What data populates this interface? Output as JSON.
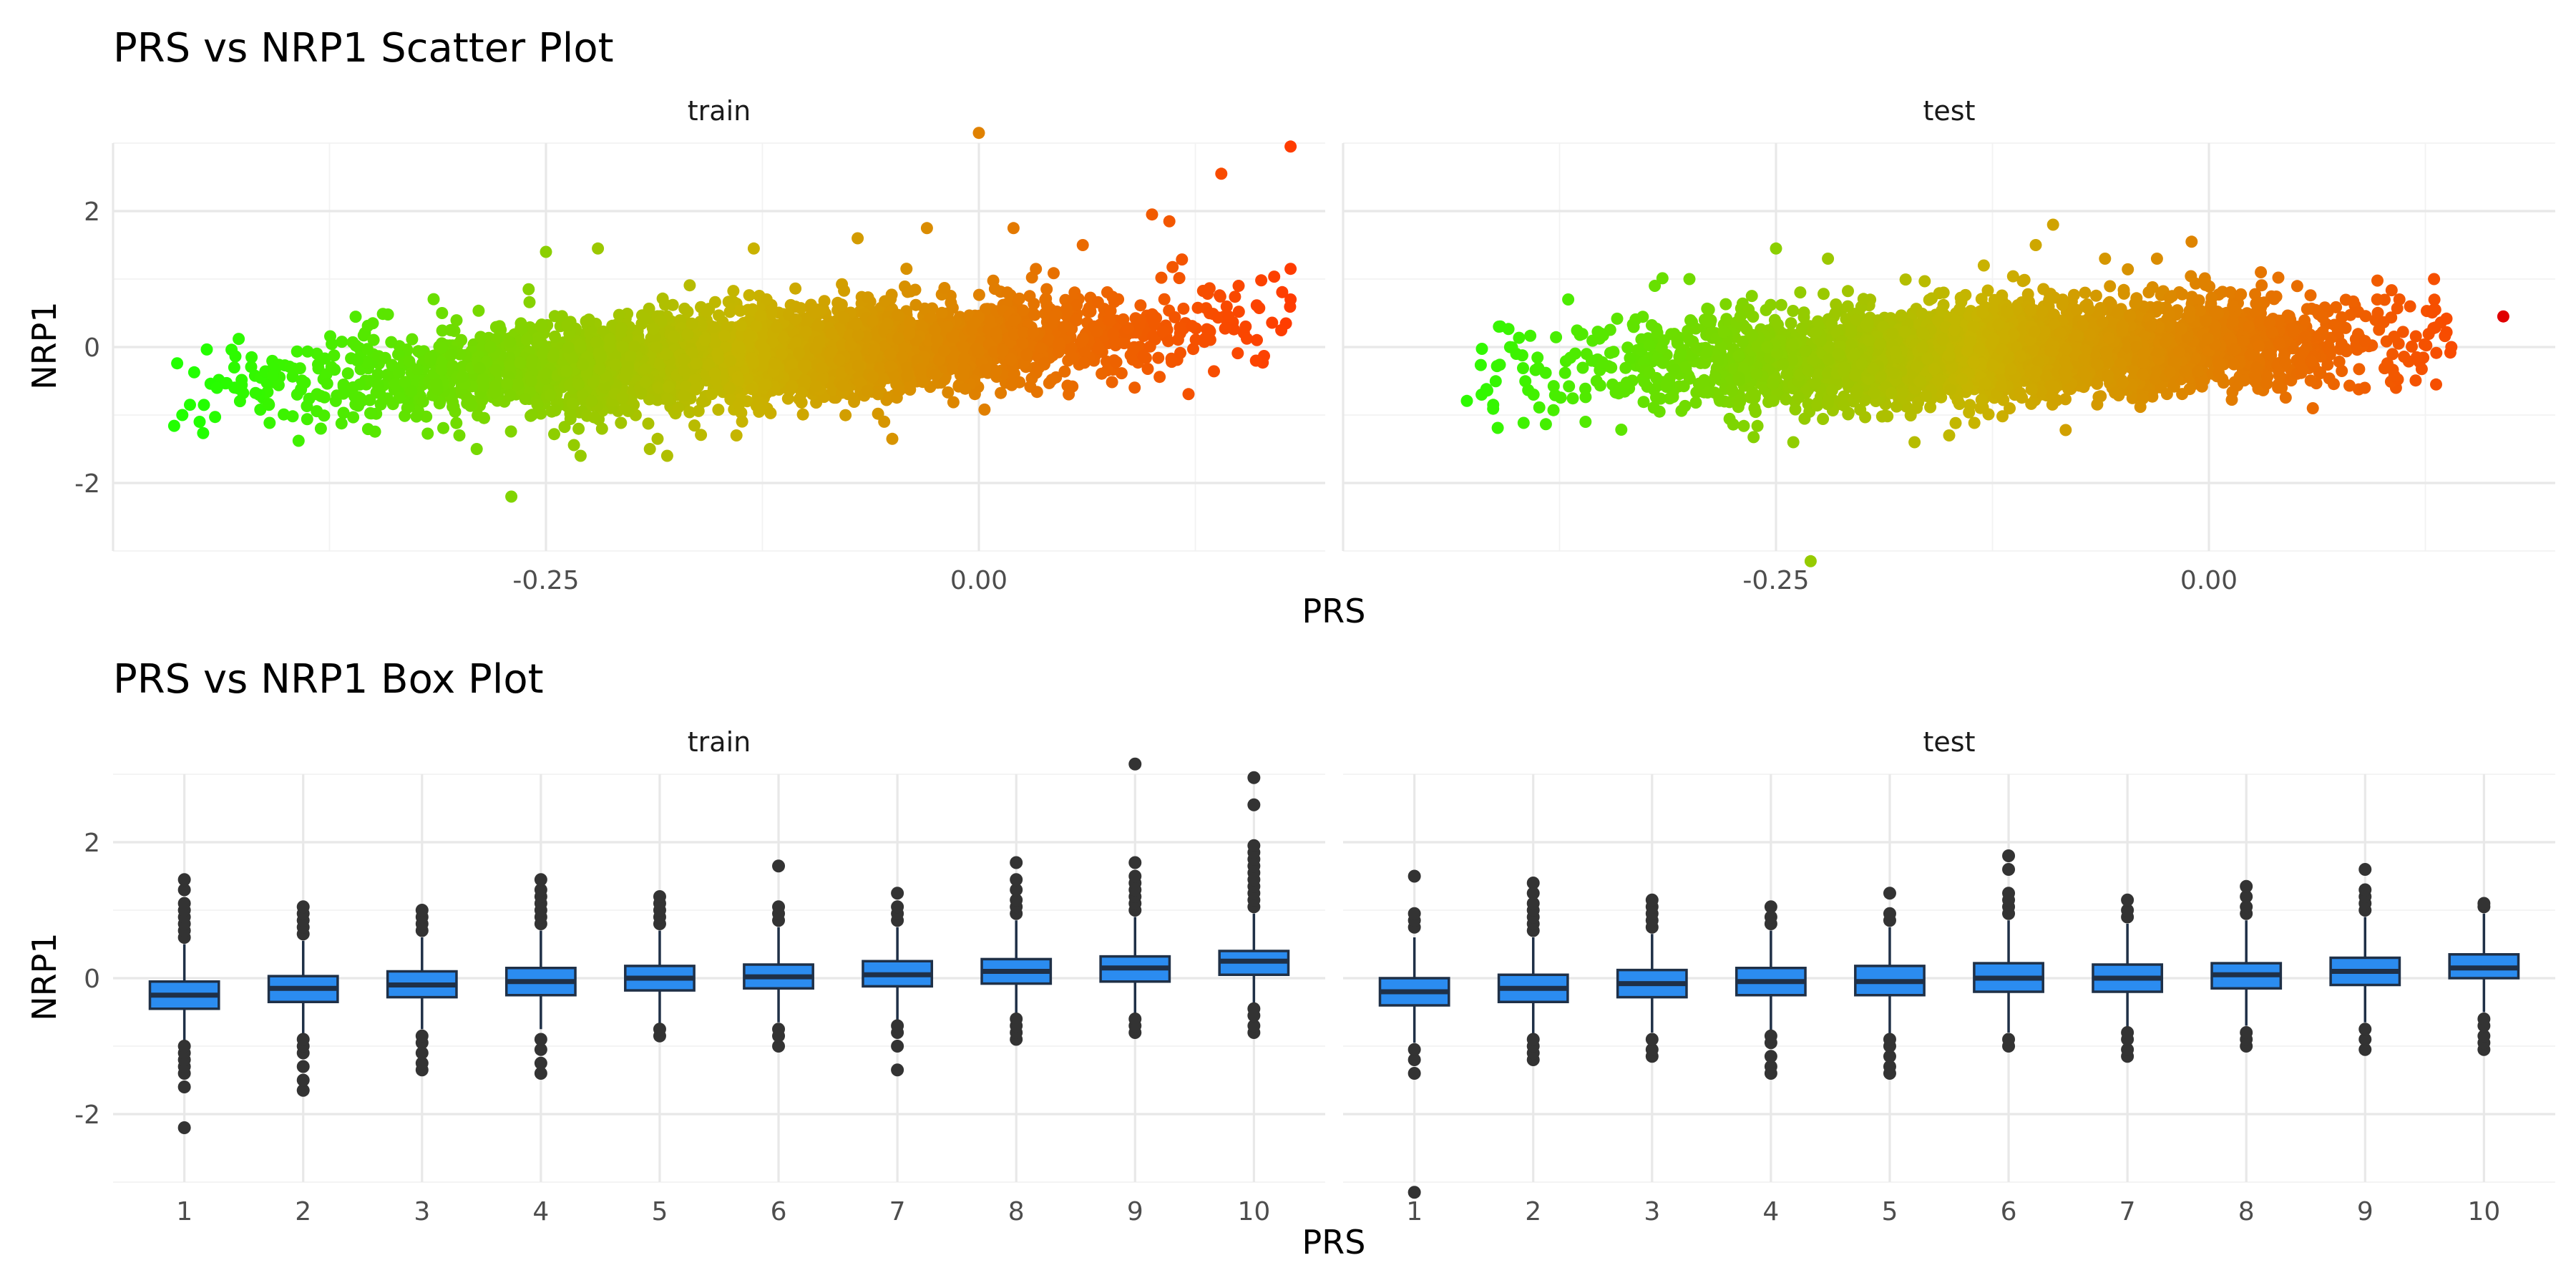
{
  "chart_data": [
    {
      "type": "scatter",
      "title": "PRS vs NRP1 Scatter Plot",
      "xlabel": "PRS",
      "ylabel": "NRP1",
      "facets": [
        "train",
        "test"
      ],
      "xlim": [
        -0.5,
        0.2
      ],
      "ylim": [
        -3.0,
        3.0
      ],
      "x_ticks": [
        -0.25,
        0.0
      ],
      "x_tick_labels": [
        "-0.25",
        "0.00"
      ],
      "y_ticks": [
        -2,
        0,
        2
      ],
      "y_tick_labels": [
        "-2",
        "0",
        "2"
      ],
      "color_scale": {
        "low": "#22ff00",
        "mid": "#c8b400",
        "high": "#ff3c00",
        "range": [
          -0.45,
          0.18
        ]
      },
      "grid": true,
      "legend": "none",
      "panels": [
        {
          "name": "train",
          "cloud": {
            "x_range": [
              -0.47,
              0.18
            ],
            "slope": 2.6,
            "mean_at_zero": 0.05,
            "sd": 0.35
          },
          "points": [
            {
              "x": -0.46,
              "y": -1.0
            },
            {
              "x": -0.45,
              "y": -1.1
            },
            {
              "x": -0.44,
              "y": -0.6
            },
            {
              "x": -0.43,
              "y": -0.3
            },
            {
              "x": -0.42,
              "y": -0.15
            },
            {
              "x": -0.41,
              "y": -0.85
            },
            {
              "x": -0.38,
              "y": -1.2
            },
            {
              "x": -0.35,
              "y": 0.35
            },
            {
              "x": -0.31,
              "y": 0.5
            },
            {
              "x": -0.3,
              "y": -1.3
            },
            {
              "x": -0.29,
              "y": -1.5
            },
            {
              "x": -0.27,
              "y": -2.2
            },
            {
              "x": -0.26,
              "y": 0.85
            },
            {
              "x": -0.25,
              "y": 1.4
            },
            {
              "x": -0.23,
              "y": -1.6
            },
            {
              "x": -0.22,
              "y": 1.45
            },
            {
              "x": -0.19,
              "y": -1.5
            },
            {
              "x": -0.18,
              "y": -1.6
            },
            {
              "x": -0.14,
              "y": -1.3
            },
            {
              "x": -0.13,
              "y": 1.45
            },
            {
              "x": -0.07,
              "y": 1.6
            },
            {
              "x": -0.05,
              "y": -1.35
            },
            {
              "x": -0.03,
              "y": 1.75
            },
            {
              "x": 0.0,
              "y": 3.15
            },
            {
              "x": 0.02,
              "y": 1.75
            },
            {
              "x": 0.06,
              "y": 1.5
            },
            {
              "x": 0.1,
              "y": 1.95
            },
            {
              "x": 0.11,
              "y": 1.85
            },
            {
              "x": 0.14,
              "y": 2.55
            },
            {
              "x": 0.15,
              "y": 0.9
            },
            {
              "x": 0.16,
              "y": -0.2
            },
            {
              "x": 0.18,
              "y": 1.15
            },
            {
              "x": 0.18,
              "y": 0.7
            },
            {
              "x": 0.18,
              "y": 2.95
            }
          ]
        },
        {
          "name": "test",
          "cloud": {
            "x_range": [
              -0.43,
              0.14
            ],
            "slope": 1.8,
            "mean_at_zero": 0.05,
            "sd": 0.35
          },
          "points": [
            {
              "x": -0.42,
              "y": -0.7
            },
            {
              "x": -0.41,
              "y": 0.3
            },
            {
              "x": -0.4,
              "y": -0.1
            },
            {
              "x": -0.39,
              "y": -0.7
            },
            {
              "x": -0.37,
              "y": 0.7
            },
            {
              "x": -0.36,
              "y": -1.1
            },
            {
              "x": -0.32,
              "y": 0.9
            },
            {
              "x": -0.3,
              "y": 1.0
            },
            {
              "x": -0.25,
              "y": 1.45
            },
            {
              "x": -0.24,
              "y": -1.4
            },
            {
              "x": -0.23,
              "y": -3.15
            },
            {
              "x": -0.22,
              "y": 1.3
            },
            {
              "x": -0.17,
              "y": -1.4
            },
            {
              "x": -0.15,
              "y": -1.3
            },
            {
              "x": -0.13,
              "y": 1.2
            },
            {
              "x": -0.1,
              "y": 1.5
            },
            {
              "x": -0.09,
              "y": 1.8
            },
            {
              "x": -0.06,
              "y": 1.3
            },
            {
              "x": -0.03,
              "y": 1.3
            },
            {
              "x": -0.01,
              "y": 1.55
            },
            {
              "x": 0.03,
              "y": 1.1
            },
            {
              "x": 0.06,
              "y": -0.9
            },
            {
              "x": 0.09,
              "y": -0.6
            },
            {
              "x": 0.11,
              "y": 0.7
            },
            {
              "x": 0.12,
              "y": -0.15
            },
            {
              "x": 0.13,
              "y": 1.0
            },
            {
              "x": 0.14,
              "y": 0.0
            },
            {
              "x": 0.17,
              "y": 0.45
            }
          ]
        }
      ]
    },
    {
      "type": "box",
      "title": "PRS vs NRP1 Box Plot",
      "xlabel": "PRS",
      "ylabel": "NRP1",
      "facets": [
        "train",
        "test"
      ],
      "categories": [
        "1",
        "2",
        "3",
        "4",
        "5",
        "6",
        "7",
        "8",
        "9",
        "10"
      ],
      "ylim": [
        -3.0,
        3.0
      ],
      "y_ticks": [
        -2,
        0,
        2
      ],
      "y_tick_labels": [
        "-2",
        "0",
        "2"
      ],
      "box_fill": "#2b8cf0",
      "box_line": "#1f3047",
      "point_color": "#333333",
      "grid": true,
      "legend": "none",
      "panels": [
        {
          "name": "train",
          "boxes": [
            {
              "q1": -0.45,
              "median": -0.25,
              "q3": -0.05,
              "lower": -0.95,
              "upper": 0.5,
              "outliers": [
                -2.2,
                -1.6,
                -1.4,
                -1.3,
                -1.2,
                -1.1,
                -1.0,
                0.6,
                0.7,
                0.8,
                0.9,
                1.0,
                1.1,
                1.3,
                1.45
              ]
            },
            {
              "q1": -0.35,
              "median": -0.15,
              "q3": 0.03,
              "lower": -0.85,
              "upper": 0.55,
              "outliers": [
                -1.65,
                -1.5,
                -1.3,
                -1.1,
                -1.0,
                -0.9,
                0.65,
                0.75,
                0.85,
                0.95,
                1.05
              ]
            },
            {
              "q1": -0.28,
              "median": -0.1,
              "q3": 0.1,
              "lower": -0.75,
              "upper": 0.6,
              "outliers": [
                -1.35,
                -1.25,
                -1.1,
                -0.95,
                -0.85,
                0.7,
                0.8,
                0.9,
                1.0
              ]
            },
            {
              "q1": -0.25,
              "median": -0.05,
              "q3": 0.15,
              "lower": -0.75,
              "upper": 0.7,
              "outliers": [
                -1.4,
                -1.25,
                -1.05,
                -0.9,
                0.8,
                0.9,
                1.0,
                1.1,
                1.2,
                1.3,
                1.45
              ]
            },
            {
              "q1": -0.18,
              "median": 0.0,
              "q3": 0.18,
              "lower": -0.7,
              "upper": 0.7,
              "outliers": [
                -0.85,
                -0.75,
                0.8,
                0.9,
                1.0,
                1.1,
                1.2
              ]
            },
            {
              "q1": -0.15,
              "median": 0.02,
              "q3": 0.2,
              "lower": -0.65,
              "upper": 0.75,
              "outliers": [
                -1.0,
                -0.85,
                -0.75,
                0.85,
                0.95,
                1.05,
                1.65
              ]
            },
            {
              "q1": -0.12,
              "median": 0.05,
              "q3": 0.25,
              "lower": -0.65,
              "upper": 0.75,
              "outliers": [
                -1.35,
                -1.0,
                -0.8,
                -0.7,
                0.85,
                0.95,
                1.05,
                1.25
              ]
            },
            {
              "q1": -0.08,
              "median": 0.1,
              "q3": 0.28,
              "lower": -0.55,
              "upper": 0.85,
              "outliers": [
                -0.9,
                -0.8,
                -0.7,
                -0.6,
                0.95,
                1.05,
                1.15,
                1.3,
                1.45,
                1.7
              ]
            },
            {
              "q1": -0.05,
              "median": 0.15,
              "q3": 0.32,
              "lower": -0.55,
              "upper": 0.9,
              "outliers": [
                -0.8,
                -0.7,
                -0.6,
                1.0,
                1.1,
                1.2,
                1.3,
                1.4,
                1.5,
                1.7,
                3.15
              ]
            },
            {
              "q1": 0.05,
              "median": 0.25,
              "q3": 0.4,
              "lower": -0.4,
              "upper": 0.95,
              "outliers": [
                -0.8,
                -0.7,
                -0.55,
                -0.45,
                1.05,
                1.15,
                1.25,
                1.35,
                1.45,
                1.55,
                1.65,
                1.75,
                1.85,
                1.95,
                2.55,
                2.95
              ]
            }
          ]
        },
        {
          "name": "test",
          "boxes": [
            {
              "q1": -0.4,
              "median": -0.2,
              "q3": 0.0,
              "lower": -0.95,
              "upper": 0.6,
              "outliers": [
                -3.15,
                -1.4,
                -1.2,
                -1.05,
                0.75,
                0.85,
                0.95,
                1.5
              ]
            },
            {
              "q1": -0.35,
              "median": -0.15,
              "q3": 0.05,
              "lower": -0.85,
              "upper": 0.6,
              "outliers": [
                -1.2,
                -1.1,
                -1.0,
                -0.9,
                0.7,
                0.8,
                0.9,
                1.0,
                1.1,
                1.25,
                1.4
              ]
            },
            {
              "q1": -0.28,
              "median": -0.08,
              "q3": 0.12,
              "lower": -0.8,
              "upper": 0.65,
              "outliers": [
                -1.15,
                -1.05,
                -0.9,
                0.75,
                0.85,
                0.95,
                1.05,
                1.15
              ]
            },
            {
              "q1": -0.25,
              "median": -0.05,
              "q3": 0.15,
              "lower": -0.8,
              "upper": 0.7,
              "outliers": [
                -1.4,
                -1.3,
                -1.15,
                -0.95,
                -0.85,
                0.8,
                0.9,
                1.05
              ]
            },
            {
              "q1": -0.25,
              "median": -0.05,
              "q3": 0.18,
              "lower": -0.85,
              "upper": 0.75,
              "outliers": [
                -1.4,
                -1.3,
                -1.15,
                -1.0,
                -0.9,
                0.85,
                0.95,
                1.25
              ]
            },
            {
              "q1": -0.2,
              "median": 0.0,
              "q3": 0.22,
              "lower": -0.8,
              "upper": 0.85,
              "outliers": [
                -1.0,
                -0.9,
                0.95,
                1.05,
                1.15,
                1.25,
                1.6,
                1.8
              ]
            },
            {
              "q1": -0.2,
              "median": 0.0,
              "q3": 0.2,
              "lower": -0.75,
              "upper": 0.8,
              "outliers": [
                -1.15,
                -1.05,
                -0.9,
                -0.8,
                0.9,
                1.0,
                1.15
              ]
            },
            {
              "q1": -0.15,
              "median": 0.05,
              "q3": 0.22,
              "lower": -0.7,
              "upper": 0.85,
              "outliers": [
                -1.0,
                -0.9,
                -0.8,
                0.95,
                1.05,
                1.2,
                1.35
              ]
            },
            {
              "q1": -0.1,
              "median": 0.1,
              "q3": 0.3,
              "lower": -0.65,
              "upper": 0.9,
              "outliers": [
                -1.05,
                -0.9,
                -0.75,
                1.0,
                1.1,
                1.2,
                1.3,
                1.6
              ]
            },
            {
              "q1": 0.0,
              "median": 0.15,
              "q3": 0.35,
              "lower": -0.5,
              "upper": 0.95,
              "outliers": [
                -1.05,
                -0.95,
                -0.85,
                -0.7,
                -0.6,
                1.05,
                1.1
              ]
            }
          ]
        }
      ]
    }
  ]
}
